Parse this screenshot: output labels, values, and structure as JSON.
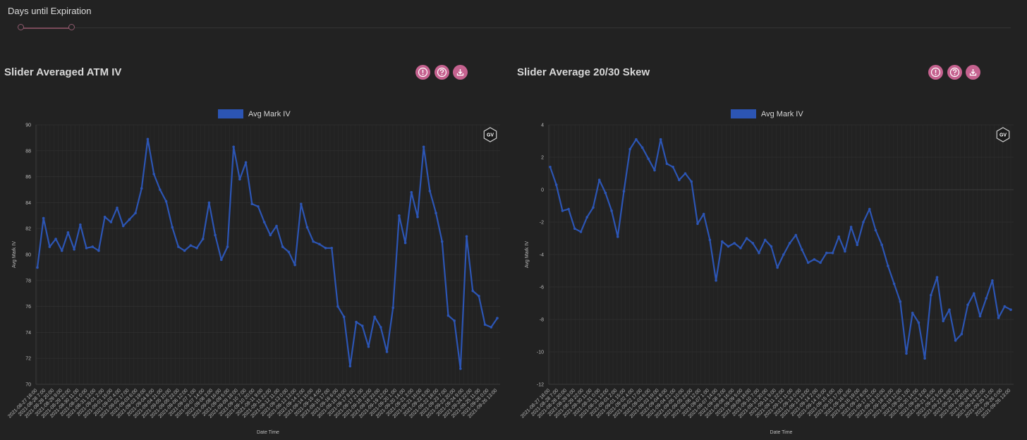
{
  "slider": {
    "label": "Days until Expiration"
  },
  "panels": [
    {
      "title": "Slider Averaged ATM IV"
    },
    {
      "title": "Slider Average 20/30 Skew"
    }
  ],
  "icons": [
    "info-icon",
    "help-icon",
    "download-icon"
  ],
  "accent_color": "#c5628f",
  "series_color": "#2c55b4",
  "x_ticks": [
    "2021-08-27 18:00",
    "2021-08-28 7:00",
    "2021-08-28 20:00",
    "2021-08-29 9:00",
    "2021-08-29 22:00",
    "2021-08-30 11:00",
    "2021-08-31 0:00",
    "2021-08-31 13:00",
    "2021-09-01 2:00",
    "2021-09-01 15:00",
    "2021-09-02 4:00",
    "2021-09-02 17:00",
    "2021-09-03 6:00",
    "2021-09-03 19:00",
    "2021-09-04 8:00",
    "2021-09-04 21:00",
    "2021-09-05 10:00",
    "2021-09-05 23:00",
    "2021-09-06 12:00",
    "2021-09-07 1:00",
    "2021-09-07 14:00",
    "2021-09-08 3:00",
    "2021-09-08 16:00",
    "2021-09-09 5:00",
    "2021-09-09 18:00",
    "2021-09-10 7:00",
    "2021-09-10 20:00",
    "2021-09-11 9:00",
    "2021-09-11 22:00",
    "2021-09-12 11:00",
    "2021-09-13 0:00",
    "2021-09-13 13:00",
    "2021-09-14 2:00",
    "2021-09-14 15:00",
    "2021-09-15 4:00",
    "2021-09-15 17:00",
    "2021-09-16 6:00",
    "2021-09-16 19:00",
    "2021-09-17 8:00",
    "2021-09-17 21:00",
    "2021-09-18 10:00",
    "2021-09-18 23:00",
    "2021-09-19 12:00",
    "2021-09-20 1:00",
    "2021-09-20 14:00",
    "2021-09-21 3:00",
    "2021-09-21 16:00",
    "2021-09-22 5:00",
    "2021-09-22 18:00",
    "2021-09-23 7:00",
    "2021-09-23 20:00",
    "2021-09-24 9:00",
    "2021-09-24 22:00",
    "2021-09-25 11:00",
    "2021-09-26 0:00",
    "2021-09-26 13:00"
  ],
  "chart_data": [
    {
      "type": "line",
      "xlabel": "Date Time",
      "ylabel": "Avg Mark IV",
      "ylim": [
        70,
        90
      ],
      "y_ticks": [
        70,
        72,
        74,
        76,
        78,
        80,
        82,
        84,
        86,
        88,
        90
      ],
      "legend": "top-center",
      "grid": true,
      "series": [
        {
          "name": "Avg Mark IV",
          "values": [
            79,
            82.8,
            80.6,
            81.2,
            80.3,
            81.7,
            80.4,
            82.3,
            80.5,
            80.6,
            80.3,
            82.9,
            82.5,
            83.6,
            82.2,
            82.7,
            83.2,
            85.1,
            88.9,
            86.2,
            85,
            84.1,
            82.1,
            80.6,
            80.3,
            80.7,
            80.5,
            81.2,
            84,
            81.5,
            79.6,
            80.6,
            88.3,
            85.8,
            87.1,
            83.9,
            83.7,
            82.5,
            81.5,
            82.2,
            80.6,
            80.2,
            79.2,
            83.9,
            82.1,
            81,
            80.8,
            80.5,
            80.5,
            76,
            75.2,
            71.4,
            74.8,
            74.5,
            72.9,
            75.2,
            74.4,
            72.5,
            75.9,
            83,
            80.9,
            84.8,
            82.9,
            88.3,
            84.9,
            83.2,
            81,
            75.3,
            74.9,
            71.2,
            81.4,
            77.2,
            76.8,
            74.6,
            74.4,
            75.1
          ]
        }
      ]
    },
    {
      "type": "line",
      "xlabel": "Date Time",
      "ylabel": "Avg Mark IV",
      "ylim": [
        -12,
        4
      ],
      "y_ticks": [
        -12,
        -10,
        -8,
        -6,
        -4,
        -2,
        0,
        2,
        4
      ],
      "legend": "top-center",
      "grid": true,
      "series": [
        {
          "name": "Avg Mark IV",
          "values": [
            1.4,
            0.3,
            -1.3,
            -1.2,
            -2.4,
            -2.6,
            -1.7,
            -1.1,
            0.6,
            -0.2,
            -1.3,
            -2.9,
            -0.1,
            2.5,
            3.1,
            2.6,
            1.9,
            1.2,
            3.1,
            1.6,
            1.4,
            0.6,
            1,
            0.5,
            -2.1,
            -1.5,
            -3.1,
            -5.6,
            -3.2,
            -3.5,
            -3.3,
            -3.6,
            -3,
            -3.3,
            -3.9,
            -3.1,
            -3.5,
            -4.8,
            -4,
            -3.3,
            -2.8,
            -3.7,
            -4.5,
            -4.3,
            -4.5,
            -3.9,
            -3.9,
            -2.9,
            -3.8,
            -2.3,
            -3.4,
            -2,
            -1.2,
            -2.5,
            -3.4,
            -4.7,
            -5.8,
            -6.9,
            -10.1,
            -7.6,
            -8.2,
            -10.4,
            -6.5,
            -5.4,
            -8.1,
            -7.4,
            -9.3,
            -8.9,
            -7.1,
            -6.4,
            -7.8,
            -6.7,
            -5.6,
            -7.9,
            -7.2,
            -7.4
          ]
        }
      ]
    }
  ]
}
